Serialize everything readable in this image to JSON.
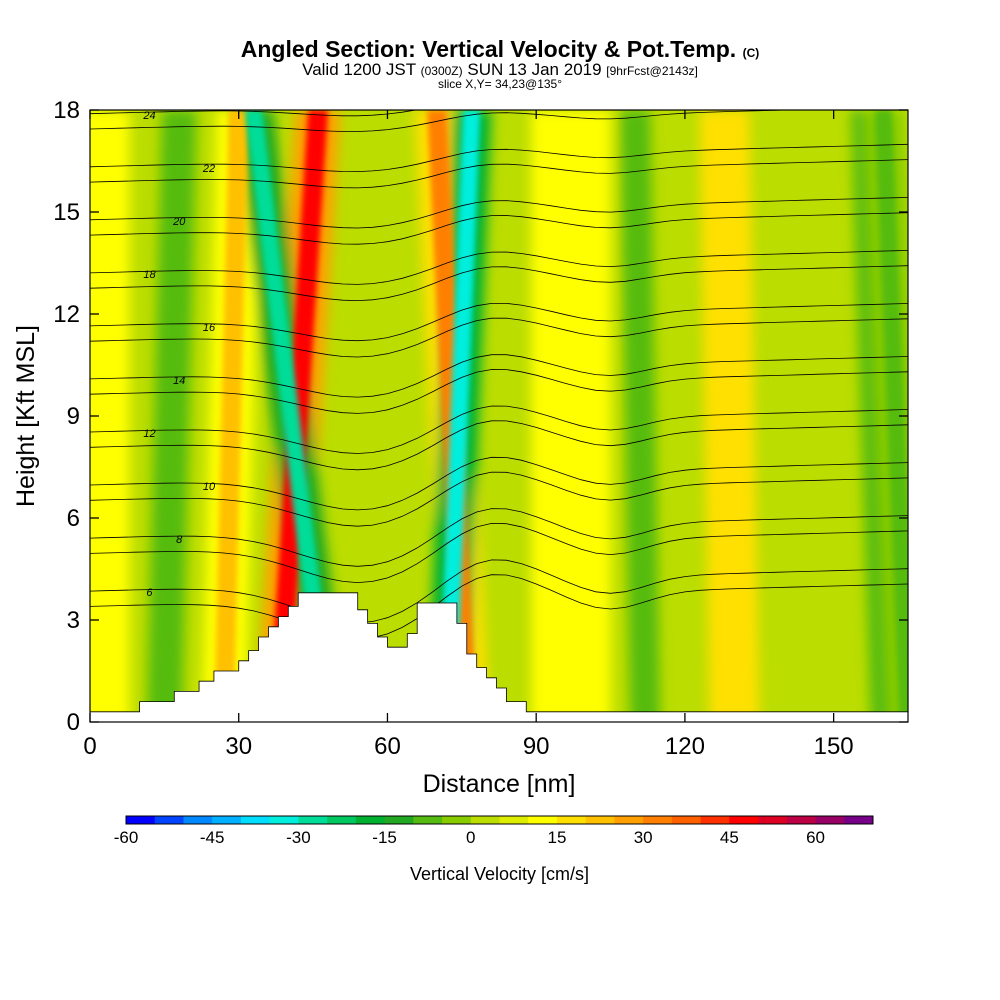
{
  "header": {
    "title_main": "Angled Section: Vertical Velocity & Pot.Temp.",
    "title_mark": "(C)",
    "valid_a": "Valid 1200 JST",
    "valid_b": "(0300Z)",
    "valid_c": "SUN 13 Jan 2019",
    "valid_d": "[9hrFcst@2143z]",
    "slice": "slice X,Y= 34,23@135°"
  },
  "chart_data": {
    "type": "heatmap",
    "xlabel": "Distance [nm]",
    "ylabel": "Height [Kft MSL]",
    "xlim": [
      0,
      165
    ],
    "ylim": [
      0,
      18
    ],
    "xticks": [
      0,
      30,
      60,
      90,
      120,
      150
    ],
    "yticks": [
      0,
      3,
      6,
      9,
      12,
      15,
      18
    ],
    "filled_field": "Vertical Velocity [cm/s]",
    "contour_field": "Potential temperature (C)",
    "contour_levels": [
      6,
      8,
      10,
      12,
      14,
      16,
      18,
      20,
      22,
      24
    ],
    "updraft_bands": [
      {
        "x_bottom": 38,
        "x_top": 46,
        "peak_cm_s": 45
      },
      {
        "x_bottom": 76,
        "x_top": 70,
        "peak_cm_s": 30
      },
      {
        "x_bottom": 27,
        "x_top": 30,
        "peak_cm_s": 20
      }
    ],
    "downdraft_bands": [
      {
        "x_bottom": 48,
        "x_top": 33,
        "peak_cm_s": -30
      },
      {
        "x_bottom": 72,
        "x_top": 77,
        "peak_cm_s": -35
      },
      {
        "x_bottom": 165,
        "x_top": 160,
        "peak_cm_s": -10
      }
    ],
    "terrain_kft": [
      [
        0,
        0.3
      ],
      [
        10,
        0.6
      ],
      [
        17,
        0.9
      ],
      [
        22,
        1.2
      ],
      [
        25,
        1.5
      ],
      [
        30,
        1.8
      ],
      [
        32,
        2.1
      ],
      [
        34,
        2.5
      ],
      [
        36,
        2.8
      ],
      [
        38,
        3.1
      ],
      [
        40,
        3.4
      ],
      [
        42,
        3.8
      ],
      [
        52,
        3.8
      ],
      [
        54,
        3.3
      ],
      [
        56,
        2.9
      ],
      [
        58,
        2.5
      ],
      [
        60,
        2.2
      ],
      [
        62,
        2.2
      ],
      [
        64,
        2.6
      ],
      [
        66,
        3.5
      ],
      [
        72,
        3.5
      ],
      [
        74,
        2.9
      ],
      [
        76,
        2.0
      ],
      [
        78,
        1.6
      ],
      [
        80,
        1.3
      ],
      [
        82,
        1.0
      ],
      [
        84,
        0.6
      ],
      [
        88,
        0.3
      ],
      [
        165,
        0.3
      ]
    ],
    "colorbar": {
      "label": "Vertical Velocity [cm/s]",
      "ticks": [
        "-60",
        "-45",
        "-30",
        "-15",
        "0",
        "15",
        "30",
        "45",
        "60"
      ],
      "colors": [
        "#0000ff",
        "#0044ff",
        "#0088ff",
        "#00b0ff",
        "#00ddff",
        "#00eedd",
        "#00dd99",
        "#00c860",
        "#00b030",
        "#22a822",
        "#55bb11",
        "#88cc00",
        "#bbdd00",
        "#dded00",
        "#ffff00",
        "#ffe000",
        "#ffc000",
        "#ffa000",
        "#ff8000",
        "#ff6000",
        "#ff3000",
        "#ff0000",
        "#dd0022",
        "#bb0044",
        "#990066",
        "#770088"
      ]
    }
  }
}
